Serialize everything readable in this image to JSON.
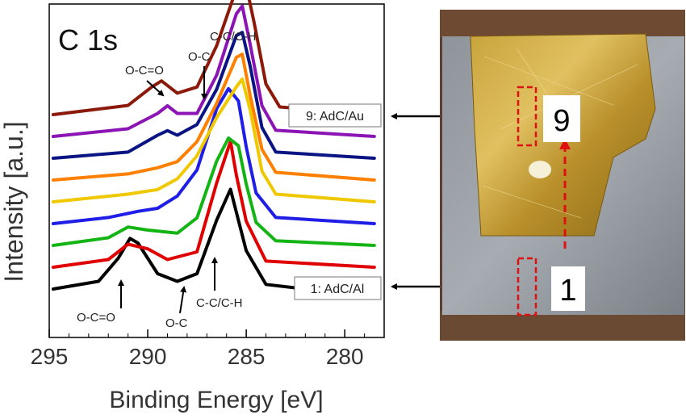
{
  "chart_data": {
    "type": "line",
    "panel_label": "C 1s",
    "xlabel": "Binding Energy [eV]",
    "ylabel": "Intensity [a.u.]",
    "xlim": [
      295,
      278
    ],
    "x_reversed": true,
    "xticks": [
      "295",
      "290",
      "285",
      "280"
    ],
    "series": [
      {
        "id": "1",
        "color": "#000000",
        "points": [
          [
            294.8,
            0.0
          ],
          [
            292.5,
            0.05
          ],
          [
            291.5,
            0.2
          ],
          [
            290.9,
            0.33
          ],
          [
            290.5,
            0.3
          ],
          [
            289.5,
            0.1
          ],
          [
            288.5,
            0.05
          ],
          [
            287.5,
            0.1
          ],
          [
            286.5,
            0.45
          ],
          [
            285.8,
            0.65
          ],
          [
            285.5,
            0.5
          ],
          [
            285.0,
            0.25
          ],
          [
            284.0,
            0.03
          ],
          [
            282.0,
            0.0
          ],
          [
            278.5,
            -0.02
          ]
        ]
      },
      {
        "id": "2",
        "color": "#e00000",
        "points": [
          [
            294.8,
            0.0
          ],
          [
            292.0,
            0.05
          ],
          [
            291.0,
            0.15
          ],
          [
            290.0,
            0.12
          ],
          [
            289.0,
            0.05
          ],
          [
            287.5,
            0.1
          ],
          [
            286.5,
            0.55
          ],
          [
            285.8,
            0.82
          ],
          [
            285.5,
            0.6
          ],
          [
            285.0,
            0.3
          ],
          [
            284.0,
            0.04
          ],
          [
            278.5,
            0.0
          ]
        ]
      },
      {
        "id": "3",
        "color": "#14b414",
        "points": [
          [
            294.8,
            0.0
          ],
          [
            292.0,
            0.05
          ],
          [
            291.0,
            0.12
          ],
          [
            290.0,
            0.1
          ],
          [
            288.5,
            0.08
          ],
          [
            287.5,
            0.18
          ],
          [
            286.5,
            0.55
          ],
          [
            285.9,
            0.7
          ],
          [
            285.4,
            0.65
          ],
          [
            285.0,
            0.4
          ],
          [
            284.5,
            0.15
          ],
          [
            283.5,
            0.03
          ],
          [
            278.5,
            0.0
          ]
        ]
      },
      {
        "id": "4",
        "color": "#1e1ee6",
        "points": [
          [
            294.8,
            0.0
          ],
          [
            292.0,
            0.04
          ],
          [
            290.5,
            0.08
          ],
          [
            289.5,
            0.1
          ],
          [
            288.5,
            0.18
          ],
          [
            287.5,
            0.35
          ],
          [
            286.5,
            0.75
          ],
          [
            285.9,
            0.88
          ],
          [
            285.4,
            0.8
          ],
          [
            285.0,
            0.5
          ],
          [
            284.5,
            0.2
          ],
          [
            283.5,
            0.04
          ],
          [
            278.5,
            0.0
          ]
        ]
      },
      {
        "id": "5",
        "color": "#f0c800",
        "points": [
          [
            294.8,
            0.0
          ],
          [
            291.0,
            0.05
          ],
          [
            289.5,
            0.08
          ],
          [
            288.5,
            0.15
          ],
          [
            287.5,
            0.3
          ],
          [
            286.5,
            0.55
          ],
          [
            285.5,
            0.75
          ],
          [
            285.2,
            0.8
          ],
          [
            284.8,
            0.6
          ],
          [
            284.2,
            0.2
          ],
          [
            283.5,
            0.05
          ],
          [
            278.5,
            0.0
          ]
        ]
      },
      {
        "id": "6",
        "color": "#ff8000",
        "points": [
          [
            294.8,
            0.0
          ],
          [
            291.0,
            0.04
          ],
          [
            289.5,
            0.08
          ],
          [
            288.5,
            0.12
          ],
          [
            287.5,
            0.25
          ],
          [
            286.5,
            0.5
          ],
          [
            285.5,
            0.8
          ],
          [
            285.2,
            0.82
          ],
          [
            284.8,
            0.55
          ],
          [
            284.2,
            0.2
          ],
          [
            283.5,
            0.05
          ],
          [
            278.5,
            0.0
          ]
        ]
      },
      {
        "id": "7",
        "color": "#0a1482",
        "points": [
          [
            294.8,
            0.0
          ],
          [
            291.0,
            0.04
          ],
          [
            289.5,
            0.15
          ],
          [
            289.0,
            0.18
          ],
          [
            288.5,
            0.15
          ],
          [
            287.5,
            0.22
          ],
          [
            286.5,
            0.45
          ],
          [
            285.5,
            0.8
          ],
          [
            285.2,
            0.82
          ],
          [
            284.8,
            0.6
          ],
          [
            284.2,
            0.2
          ],
          [
            283.5,
            0.04
          ],
          [
            278.5,
            0.0
          ]
        ]
      },
      {
        "id": "8",
        "color": "#8c14b4",
        "points": [
          [
            294.8,
            0.0
          ],
          [
            291.0,
            0.05
          ],
          [
            289.5,
            0.15
          ],
          [
            289.0,
            0.2
          ],
          [
            288.5,
            0.15
          ],
          [
            287.5,
            0.15
          ],
          [
            286.5,
            0.4
          ],
          [
            285.5,
            0.8
          ],
          [
            285.2,
            0.85
          ],
          [
            284.8,
            0.6
          ],
          [
            284.2,
            0.2
          ],
          [
            283.5,
            0.04
          ],
          [
            278.5,
            0.0
          ]
        ]
      },
      {
        "id": "9",
        "color": "#8c1a0a",
        "points": [
          [
            294.8,
            0.0
          ],
          [
            291.0,
            0.06
          ],
          [
            289.8,
            0.18
          ],
          [
            289.3,
            0.22
          ],
          [
            288.5,
            0.14
          ],
          [
            287.5,
            0.18
          ],
          [
            286.5,
            0.45
          ],
          [
            285.5,
            0.82
          ],
          [
            285.1,
            0.9
          ],
          [
            284.6,
            0.6
          ],
          [
            284.0,
            0.2
          ],
          [
            283.3,
            0.05
          ],
          [
            278.5,
            0.0
          ]
        ]
      }
    ],
    "annotations": {
      "top": {
        "occ": "O-C=O",
        "oc": "O-C",
        "cc": "C-C/C-H"
      },
      "bottom": {
        "occ": "O-C=O",
        "oc": "O-C",
        "cc": "C-C/C-H"
      }
    },
    "callouts": {
      "top": "9: AdC/Au",
      "bottom": "1: AdC/Al"
    }
  },
  "photo": {
    "labels": {
      "top": "9",
      "bottom": "1"
    }
  }
}
